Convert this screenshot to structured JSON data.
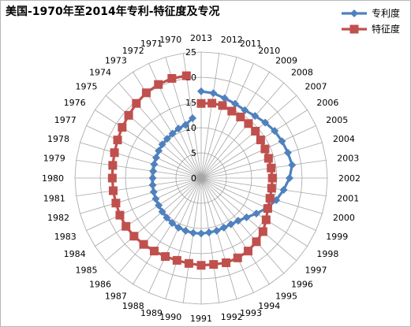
{
  "chart_data": {
    "type": "radar",
    "title": "美国-1970年至2014年专利-特征度及专况",
    "categories": [
      "2013",
      "2012",
      "2011",
      "2010",
      "2009",
      "2008",
      "2007",
      "2006",
      "2005",
      "2004",
      "2003",
      "2002",
      "2001",
      "2000",
      "1999",
      "1998",
      "1997",
      "1996",
      "1995",
      "1994",
      "1993",
      "1992",
      "1991",
      "1990",
      "1989",
      "1988",
      "1987",
      "1986",
      "1985",
      "1984",
      "1983",
      "1982",
      "1981",
      "1980",
      "1979",
      "1978",
      "1977",
      "1976",
      "1975",
      "1974",
      "1973",
      "1972",
      "1971",
      "1970"
    ],
    "rmin": 0,
    "rmax": 25,
    "major_ticks": [
      0,
      5,
      10,
      15,
      20,
      25
    ],
    "tick_labels": [
      "0",
      "5",
      "10",
      "15",
      "20",
      "25"
    ],
    "gridlines": true,
    "legend_position": "top-right",
    "series": [
      {
        "name": "专利度",
        "color": "#4f81bd",
        "marker": "diamond",
        "values": [
          17.2,
          17.0,
          16.5,
          16.2,
          16.0,
          16.3,
          16.8,
          17.3,
          17.6,
          17.9,
          18.2,
          17.5,
          16.5,
          15.5,
          14.3,
          13.0,
          11.9,
          11.2,
          10.9,
          10.8,
          10.9,
          10.9,
          11.0,
          11.0,
          10.9,
          10.8,
          10.6,
          10.4,
          10.2,
          10.0,
          9.9,
          9.8,
          9.7,
          9.6,
          9.6,
          9.7,
          9.8,
          10.0,
          10.2,
          10.3,
          10.5,
          10.8,
          11.0,
          12.0
        ]
      },
      {
        "name": "特征度",
        "color": "#c0504d",
        "marker": "square",
        "values": [
          14.8,
          15.0,
          15.0,
          14.6,
          14.4,
          14.3,
          14.2,
          14.0,
          13.9,
          13.9,
          14.0,
          14.1,
          14.1,
          14.2,
          14.5,
          15.3,
          16.2,
          16.7,
          17.2,
          17.4,
          17.5,
          17.3,
          17.3,
          17.1,
          17.0,
          17.1,
          17.2,
          17.4,
          17.6,
          17.7,
          17.7,
          17.6,
          17.6,
          17.6,
          17.7,
          17.9,
          18.2,
          18.6,
          19.0,
          19.6,
          20.1,
          20.4,
          20.6,
          20.5
        ]
      }
    ]
  }
}
